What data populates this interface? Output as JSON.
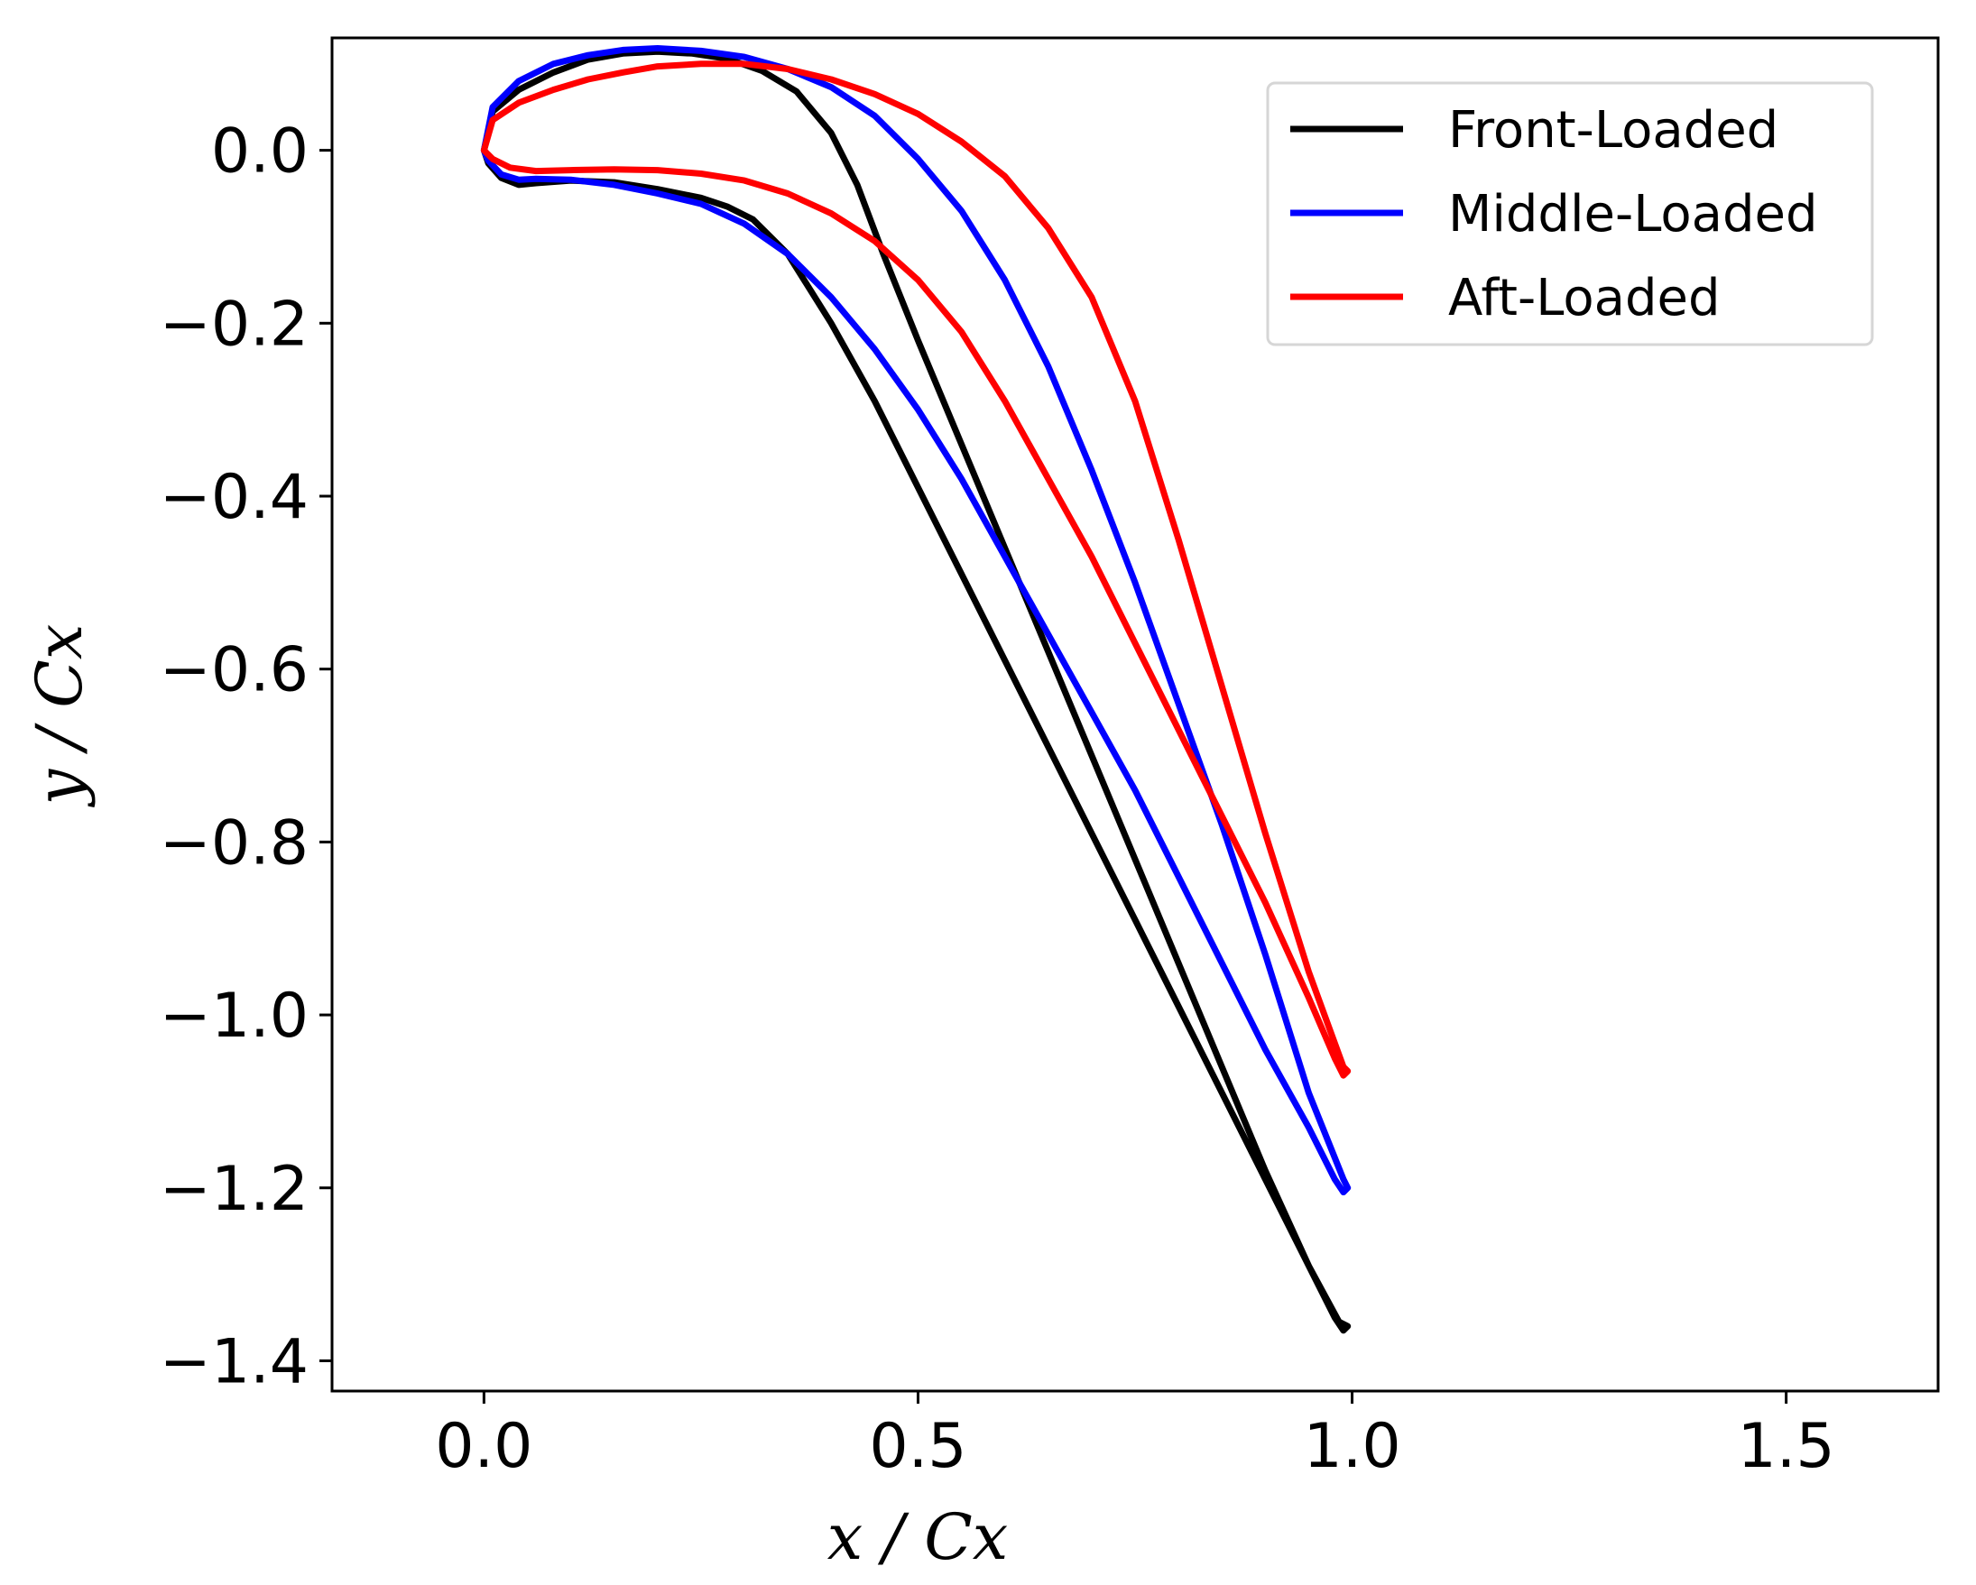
{
  "chart_data": {
    "type": "line",
    "xlabel": "x / Cx",
    "ylabel": "y / Cx",
    "xlim": [
      -0.175,
      1.675
    ],
    "ylim": [
      -1.435,
      0.13
    ],
    "xticks": [
      0.0,
      0.5,
      1.0,
      1.5
    ],
    "xtick_labels": [
      "0.0",
      "0.5",
      "1.0",
      "1.5"
    ],
    "yticks": [
      0.0,
      -0.2,
      -0.4,
      -0.6,
      -0.8,
      -1.0,
      -1.2,
      -1.4
    ],
    "ytick_labels": [
      "0.0",
      "−0.2",
      "−0.4",
      "−0.6",
      "−0.8",
      "−1.0",
      "−1.2",
      "−1.4"
    ],
    "grid": false,
    "legend_position": "top-right",
    "series": [
      {
        "name": "Front-Loaded",
        "color": "#000000",
        "x": [
          0.0,
          0.01,
          0.04,
          0.08,
          0.12,
          0.16,
          0.2,
          0.24,
          0.28,
          0.32,
          0.36,
          0.4,
          0.43,
          0.46,
          0.5,
          0.55,
          0.6,
          0.65,
          0.7,
          0.75,
          0.8,
          0.85,
          0.9,
          0.95,
          0.985,
          0.995,
          0.99,
          0.98,
          0.95,
          0.9,
          0.85,
          0.8,
          0.75,
          0.7,
          0.65,
          0.6,
          0.55,
          0.5,
          0.45,
          0.4,
          0.35,
          0.31,
          0.28,
          0.25,
          0.2,
          0.15,
          0.1,
          0.06,
          0.04,
          0.02,
          0.005,
          0.0
        ],
        "y": [
          0.0,
          0.045,
          0.07,
          0.09,
          0.105,
          0.112,
          0.114,
          0.112,
          0.106,
          0.092,
          0.068,
          0.02,
          -0.04,
          -0.12,
          -0.22,
          -0.34,
          -0.46,
          -0.58,
          -0.7,
          -0.82,
          -0.94,
          -1.06,
          -1.18,
          -1.29,
          -1.355,
          -1.36,
          -1.365,
          -1.35,
          -1.29,
          -1.19,
          -1.09,
          -0.99,
          -0.89,
          -0.79,
          -0.69,
          -0.59,
          -0.49,
          -0.39,
          -0.29,
          -0.2,
          -0.12,
          -0.08,
          -0.065,
          -0.055,
          -0.045,
          -0.037,
          -0.035,
          -0.038,
          -0.04,
          -0.032,
          -0.015,
          0.0
        ]
      },
      {
        "name": "Middle-Loaded",
        "color": "#0000ff",
        "x": [
          0.0,
          0.01,
          0.04,
          0.08,
          0.12,
          0.16,
          0.2,
          0.25,
          0.3,
          0.35,
          0.4,
          0.45,
          0.5,
          0.55,
          0.6,
          0.65,
          0.7,
          0.75,
          0.8,
          0.85,
          0.9,
          0.95,
          0.99,
          0.995,
          0.99,
          0.98,
          0.95,
          0.9,
          0.85,
          0.8,
          0.75,
          0.7,
          0.65,
          0.6,
          0.55,
          0.5,
          0.45,
          0.4,
          0.35,
          0.3,
          0.25,
          0.2,
          0.15,
          0.1,
          0.06,
          0.04,
          0.02,
          0.005,
          0.0
        ],
        "y": [
          0.0,
          0.05,
          0.08,
          0.1,
          0.11,
          0.116,
          0.118,
          0.115,
          0.108,
          0.094,
          0.073,
          0.04,
          -0.01,
          -0.07,
          -0.15,
          -0.25,
          -0.37,
          -0.5,
          -0.64,
          -0.78,
          -0.93,
          -1.09,
          -1.19,
          -1.2,
          -1.205,
          -1.19,
          -1.13,
          -1.04,
          -0.94,
          -0.84,
          -0.74,
          -0.65,
          -0.56,
          -0.47,
          -0.38,
          -0.3,
          -0.23,
          -0.17,
          -0.12,
          -0.085,
          -0.062,
          -0.05,
          -0.04,
          -0.034,
          -0.033,
          -0.034,
          -0.028,
          -0.012,
          0.0
        ]
      },
      {
        "name": "Aft-Loaded",
        "color": "#ff0000",
        "x": [
          0.0,
          0.01,
          0.04,
          0.08,
          0.12,
          0.16,
          0.2,
          0.25,
          0.3,
          0.35,
          0.4,
          0.45,
          0.5,
          0.55,
          0.6,
          0.65,
          0.7,
          0.75,
          0.8,
          0.85,
          0.9,
          0.95,
          0.99,
          0.995,
          0.99,
          0.98,
          0.95,
          0.9,
          0.85,
          0.8,
          0.75,
          0.7,
          0.65,
          0.6,
          0.55,
          0.5,
          0.45,
          0.4,
          0.35,
          0.3,
          0.25,
          0.2,
          0.15,
          0.1,
          0.06,
          0.03,
          0.01,
          0.0
        ],
        "y": [
          0.0,
          0.035,
          0.055,
          0.07,
          0.082,
          0.09,
          0.097,
          0.1,
          0.1,
          0.094,
          0.082,
          0.065,
          0.042,
          0.01,
          -0.03,
          -0.09,
          -0.17,
          -0.29,
          -0.45,
          -0.62,
          -0.79,
          -0.95,
          -1.06,
          -1.065,
          -1.07,
          -1.05,
          -0.98,
          -0.87,
          -0.77,
          -0.67,
          -0.57,
          -0.47,
          -0.38,
          -0.29,
          -0.21,
          -0.15,
          -0.105,
          -0.073,
          -0.05,
          -0.035,
          -0.027,
          -0.023,
          -0.022,
          -0.023,
          -0.024,
          -0.02,
          -0.01,
          0.0
        ]
      }
    ]
  }
}
